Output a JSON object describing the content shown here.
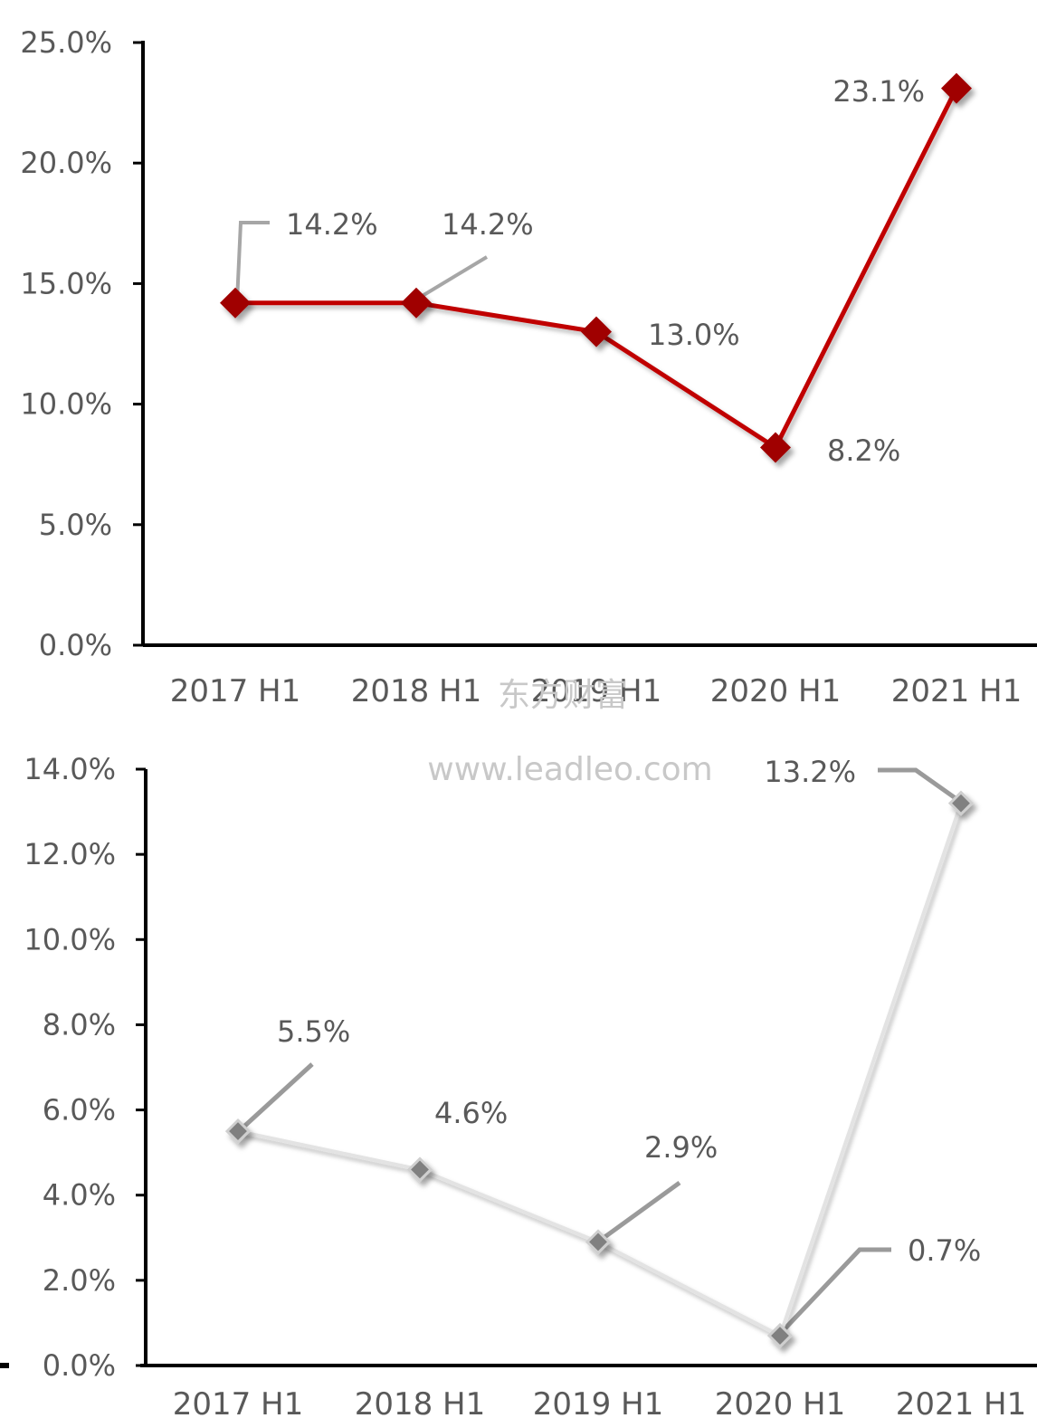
{
  "watermark": {
    "text_cn": "东方财富",
    "url": "www.leadleo.com"
  },
  "chart_data": [
    {
      "type": "line",
      "categories": [
        "2017 H1",
        "2018 H1",
        "2019 H1",
        "2020 H1",
        "2021 H1"
      ],
      "values": [
        14.2,
        14.2,
        13.0,
        8.2,
        23.1
      ],
      "data_labels": [
        "14.2%",
        "14.2%",
        "13.0%",
        "8.2%",
        "23.1%"
      ],
      "yticks": [
        "0.0%",
        "5.0%",
        "10.0%",
        "15.0%",
        "20.0%",
        "25.0%"
      ],
      "ylim": [
        0,
        25
      ],
      "ytick_step": 5,
      "line_color": "#c00000",
      "marker_color": "#a00000",
      "marker": "diamond",
      "grid": false
    },
    {
      "type": "line",
      "categories": [
        "2017 H1",
        "2018 H1",
        "2019 H1",
        "2020 H1",
        "2021 H1"
      ],
      "values": [
        5.5,
        4.6,
        2.9,
        0.7,
        13.2
      ],
      "data_labels": [
        "5.5%",
        "4.6%",
        "2.9%",
        "0.7%",
        "13.2%"
      ],
      "yticks": [
        "0.0%",
        "2.0%",
        "4.0%",
        "6.0%",
        "8.0%",
        "10.0%",
        "12.0%",
        "14.0%"
      ],
      "ylim": [
        0,
        14
      ],
      "ytick_step": 2,
      "line_color": "#e3e3e3",
      "marker_color": "#808080",
      "marker": "diamond",
      "grid": false
    }
  ]
}
